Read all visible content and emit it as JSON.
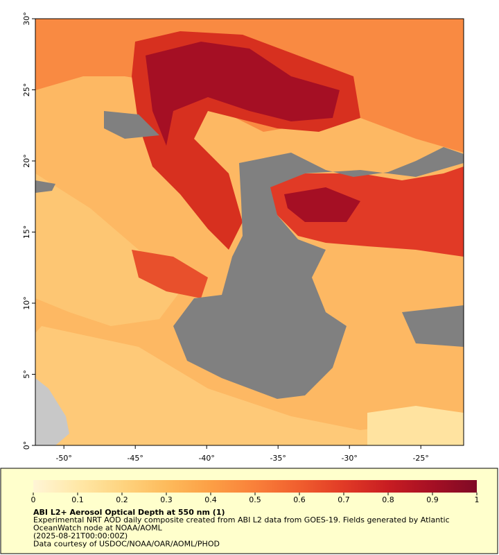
{
  "map": {
    "xlim": [
      -52,
      -22
    ],
    "ylim": [
      0,
      30
    ],
    "xticks": [
      {
        "value": -50,
        "label": "-50°"
      },
      {
        "value": -45,
        "label": "-45°"
      },
      {
        "value": -40,
        "label": "-40°"
      },
      {
        "value": -35,
        "label": "-35°"
      },
      {
        "value": -30,
        "label": "-30°"
      },
      {
        "value": -25,
        "label": "-25°"
      }
    ],
    "yticks": [
      {
        "value": 0,
        "label": "0°"
      },
      {
        "value": 5,
        "label": "5°"
      },
      {
        "value": 10,
        "label": "10°"
      },
      {
        "value": 15,
        "label": "15°"
      },
      {
        "value": 20,
        "label": "20°"
      },
      {
        "value": 25,
        "label": "25°"
      },
      {
        "value": 30,
        "label": "30°"
      }
    ]
  },
  "colorbar": {
    "range": [
      0,
      1
    ],
    "ticks": [
      0,
      0.1,
      0.2,
      0.3,
      0.4,
      0.5,
      0.6,
      0.7,
      0.8,
      0.9,
      1
    ],
    "colors": [
      "#fff5d6",
      "#ffe8a8",
      "#fed480",
      "#fdbb5c",
      "#fc9f45",
      "#f9803a",
      "#f05e2e",
      "#e13a26",
      "#c81d22",
      "#a50f24",
      "#7f0a25"
    ]
  },
  "caption": {
    "title": "ABI L2+ Aerosol Optical Depth at 550 nm (1)",
    "lines": [
      "Experimental NRT AOD daily composite created from ABI L2 data from GOES-19. Fields generated by Atlantic",
      "OceanWatch node at NOAA/AOML",
      "(2025-08-21T00:00:00Z)",
      "Data courtesy of USDOC/NOAA/OAR/AOML/PHOD"
    ]
  }
}
